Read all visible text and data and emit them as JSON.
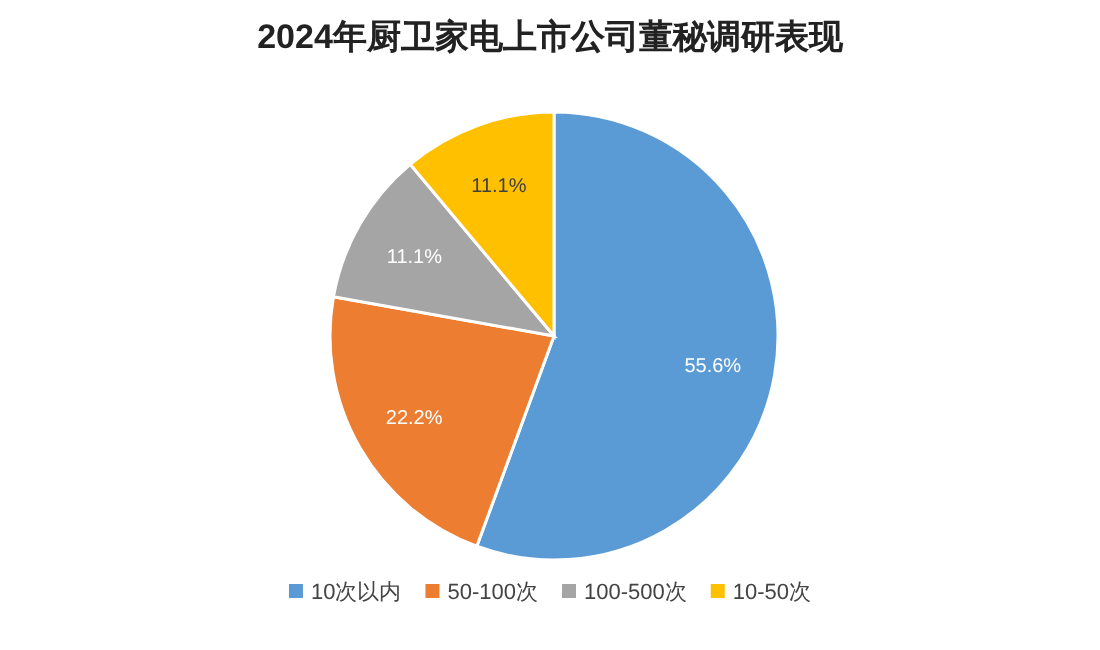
{
  "chart_data": {
    "type": "pie",
    "title": "2024年厨卫家电上市公司董秘调研表现",
    "categories": [
      "10次以内",
      "50-100次",
      "100-500次",
      "10-50次"
    ],
    "values": [
      55.6,
      22.2,
      11.1,
      11.1
    ],
    "value_labels": [
      "55.6%",
      "22.2%",
      "11.1%",
      "11.1%"
    ],
    "colors": [
      "#5b9bd5",
      "#ed7d31",
      "#a5a5a5",
      "#ffc000"
    ],
    "legend": "bottom"
  }
}
